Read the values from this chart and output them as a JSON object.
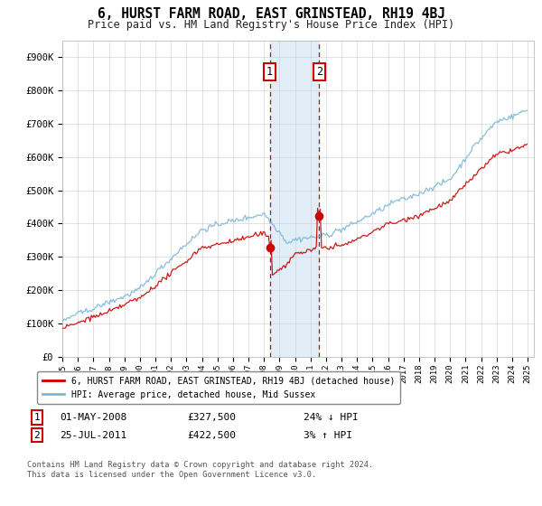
{
  "title": "6, HURST FARM ROAD, EAST GRINSTEAD, RH19 4BJ",
  "subtitle": "Price paid vs. HM Land Registry's House Price Index (HPI)",
  "legend_line1": "6, HURST FARM ROAD, EAST GRINSTEAD, RH19 4BJ (detached house)",
  "legend_line2": "HPI: Average price, detached house, Mid Sussex",
  "annotation1_date": "01-MAY-2008",
  "annotation1_price": "£327,500",
  "annotation1_hpi": "24% ↓ HPI",
  "annotation2_date": "25-JUL-2011",
  "annotation2_price": "£422,500",
  "annotation2_hpi": "3% ↑ HPI",
  "footnote": "Contains HM Land Registry data © Crown copyright and database right 2024.\nThis data is licensed under the Open Government Licence v3.0.",
  "sale1_year": 2008.37,
  "sale1_value": 327500,
  "sale2_year": 2011.56,
  "sale2_value": 422500,
  "hpi_color": "#7ab8d9",
  "price_color": "#cc0000",
  "shade_color": "#daeaf5",
  "annotation_box_color": "#cc0000",
  "ylim_max": 950000,
  "yticks": [
    0,
    100000,
    200000,
    300000,
    400000,
    500000,
    600000,
    700000,
    800000,
    900000
  ],
  "ytick_labels": [
    "£0",
    "£100K",
    "£200K",
    "£300K",
    "£400K",
    "£500K",
    "£600K",
    "£700K",
    "£800K",
    "£900K"
  ],
  "background_color": "#ffffff",
  "grid_color": "#cccccc"
}
